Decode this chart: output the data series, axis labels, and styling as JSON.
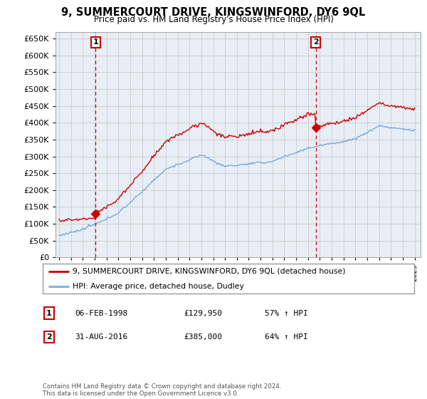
{
  "title": "9, SUMMERCOURT DRIVE, KINGSWINFORD, DY6 9QL",
  "subtitle": "Price paid vs. HM Land Registry's House Price Index (HPI)",
  "legend_line1": "9, SUMMERCOURT DRIVE, KINGSWINFORD, DY6 9QL (detached house)",
  "legend_line2": "HPI: Average price, detached house, Dudley",
  "annotation1_label": "1",
  "annotation1_date": "06-FEB-1998",
  "annotation1_price": "£129,950",
  "annotation1_hpi": "57% ↑ HPI",
  "annotation2_label": "2",
  "annotation2_date": "31-AUG-2016",
  "annotation2_price": "£385,000",
  "annotation2_hpi": "64% ↑ HPI",
  "footnote": "Contains HM Land Registry data © Crown copyright and database right 2024.\nThis data is licensed under the Open Government Licence v3.0.",
  "sale1_year": 1998.09,
  "sale1_value": 129950,
  "sale2_year": 2016.66,
  "sale2_value": 385000,
  "hpi_color": "#7aaadd",
  "price_color": "#cc0000",
  "grid_color": "#cccccc",
  "plot_bg_color": "#e8eef5",
  "background_color": "#ffffff",
  "ylim": [
    0,
    670000
  ],
  "yticks": [
    0,
    50000,
    100000,
    150000,
    200000,
    250000,
    300000,
    350000,
    400000,
    450000,
    500000,
    550000,
    600000,
    650000
  ],
  "xlim_start": 1994.7,
  "xlim_end": 2025.5
}
